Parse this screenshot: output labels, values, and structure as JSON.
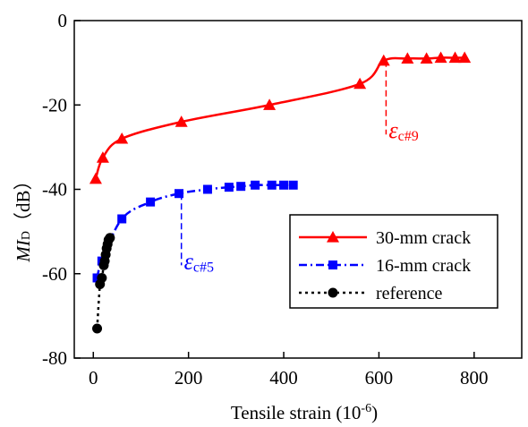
{
  "chart_data": {
    "type": "line",
    "xlabel": "Tensile strain (10",
    "xlabel_exp": "-6",
    "xlabel_close": ")",
    "ylabel_main": "MI",
    "ylabel_sub": "D",
    "ylabel_unit": "（dB）",
    "xlim": [
      -40,
      900
    ],
    "ylim": [
      -80,
      0
    ],
    "xticks": [
      0,
      200,
      400,
      600,
      800
    ],
    "yticks": [
      0,
      -20,
      -40,
      -60,
      -80
    ],
    "series": [
      {
        "name": "30-mm crack",
        "color": "#ff0000",
        "marker": "triangle",
        "line": "solid",
        "points": [
          [
            5,
            -37.5
          ],
          [
            20,
            -32.5
          ],
          [
            60,
            -28
          ],
          [
            185,
            -24
          ],
          [
            370,
            -20
          ],
          [
            560,
            -15
          ],
          [
            610,
            -9.5
          ],
          [
            660,
            -9
          ],
          [
            700,
            -9
          ],
          [
            730,
            -8.8
          ],
          [
            760,
            -8.8
          ],
          [
            780,
            -8.8
          ]
        ]
      },
      {
        "name": "16-mm crack",
        "color": "#0000ff",
        "marker": "square",
        "line": "dash-dot",
        "points": [
          [
            8,
            -61
          ],
          [
            18,
            -57
          ],
          [
            60,
            -47
          ],
          [
            120,
            -43
          ],
          [
            180,
            -41
          ],
          [
            240,
            -40
          ],
          [
            285,
            -39.5
          ],
          [
            310,
            -39.3
          ],
          [
            340,
            -39
          ],
          [
            375,
            -39
          ],
          [
            400,
            -39
          ],
          [
            420,
            -39
          ]
        ]
      },
      {
        "name": "reference",
        "color": "#000000",
        "marker": "circle",
        "line": "dotted",
        "points": [
          [
            8,
            -73
          ],
          [
            14,
            -62.5
          ],
          [
            18,
            -61
          ],
          [
            22,
            -58
          ],
          [
            24,
            -57
          ],
          [
            26,
            -55.5
          ],
          [
            28,
            -54
          ],
          [
            30,
            -53
          ],
          [
            32,
            -52
          ],
          [
            35,
            -51.5
          ]
        ]
      }
    ],
    "annotations": [
      {
        "text_main": "ε",
        "text_sub": "c#9",
        "color": "#ff0000",
        "x": 615,
        "y_top": -9.5,
        "y_bottom": -27
      },
      {
        "text_main": "ε",
        "text_sub": "c#5",
        "color": "#0000ff",
        "x": 185,
        "y_top": -41,
        "y_bottom": -58
      }
    ],
    "legend_position": "right"
  }
}
